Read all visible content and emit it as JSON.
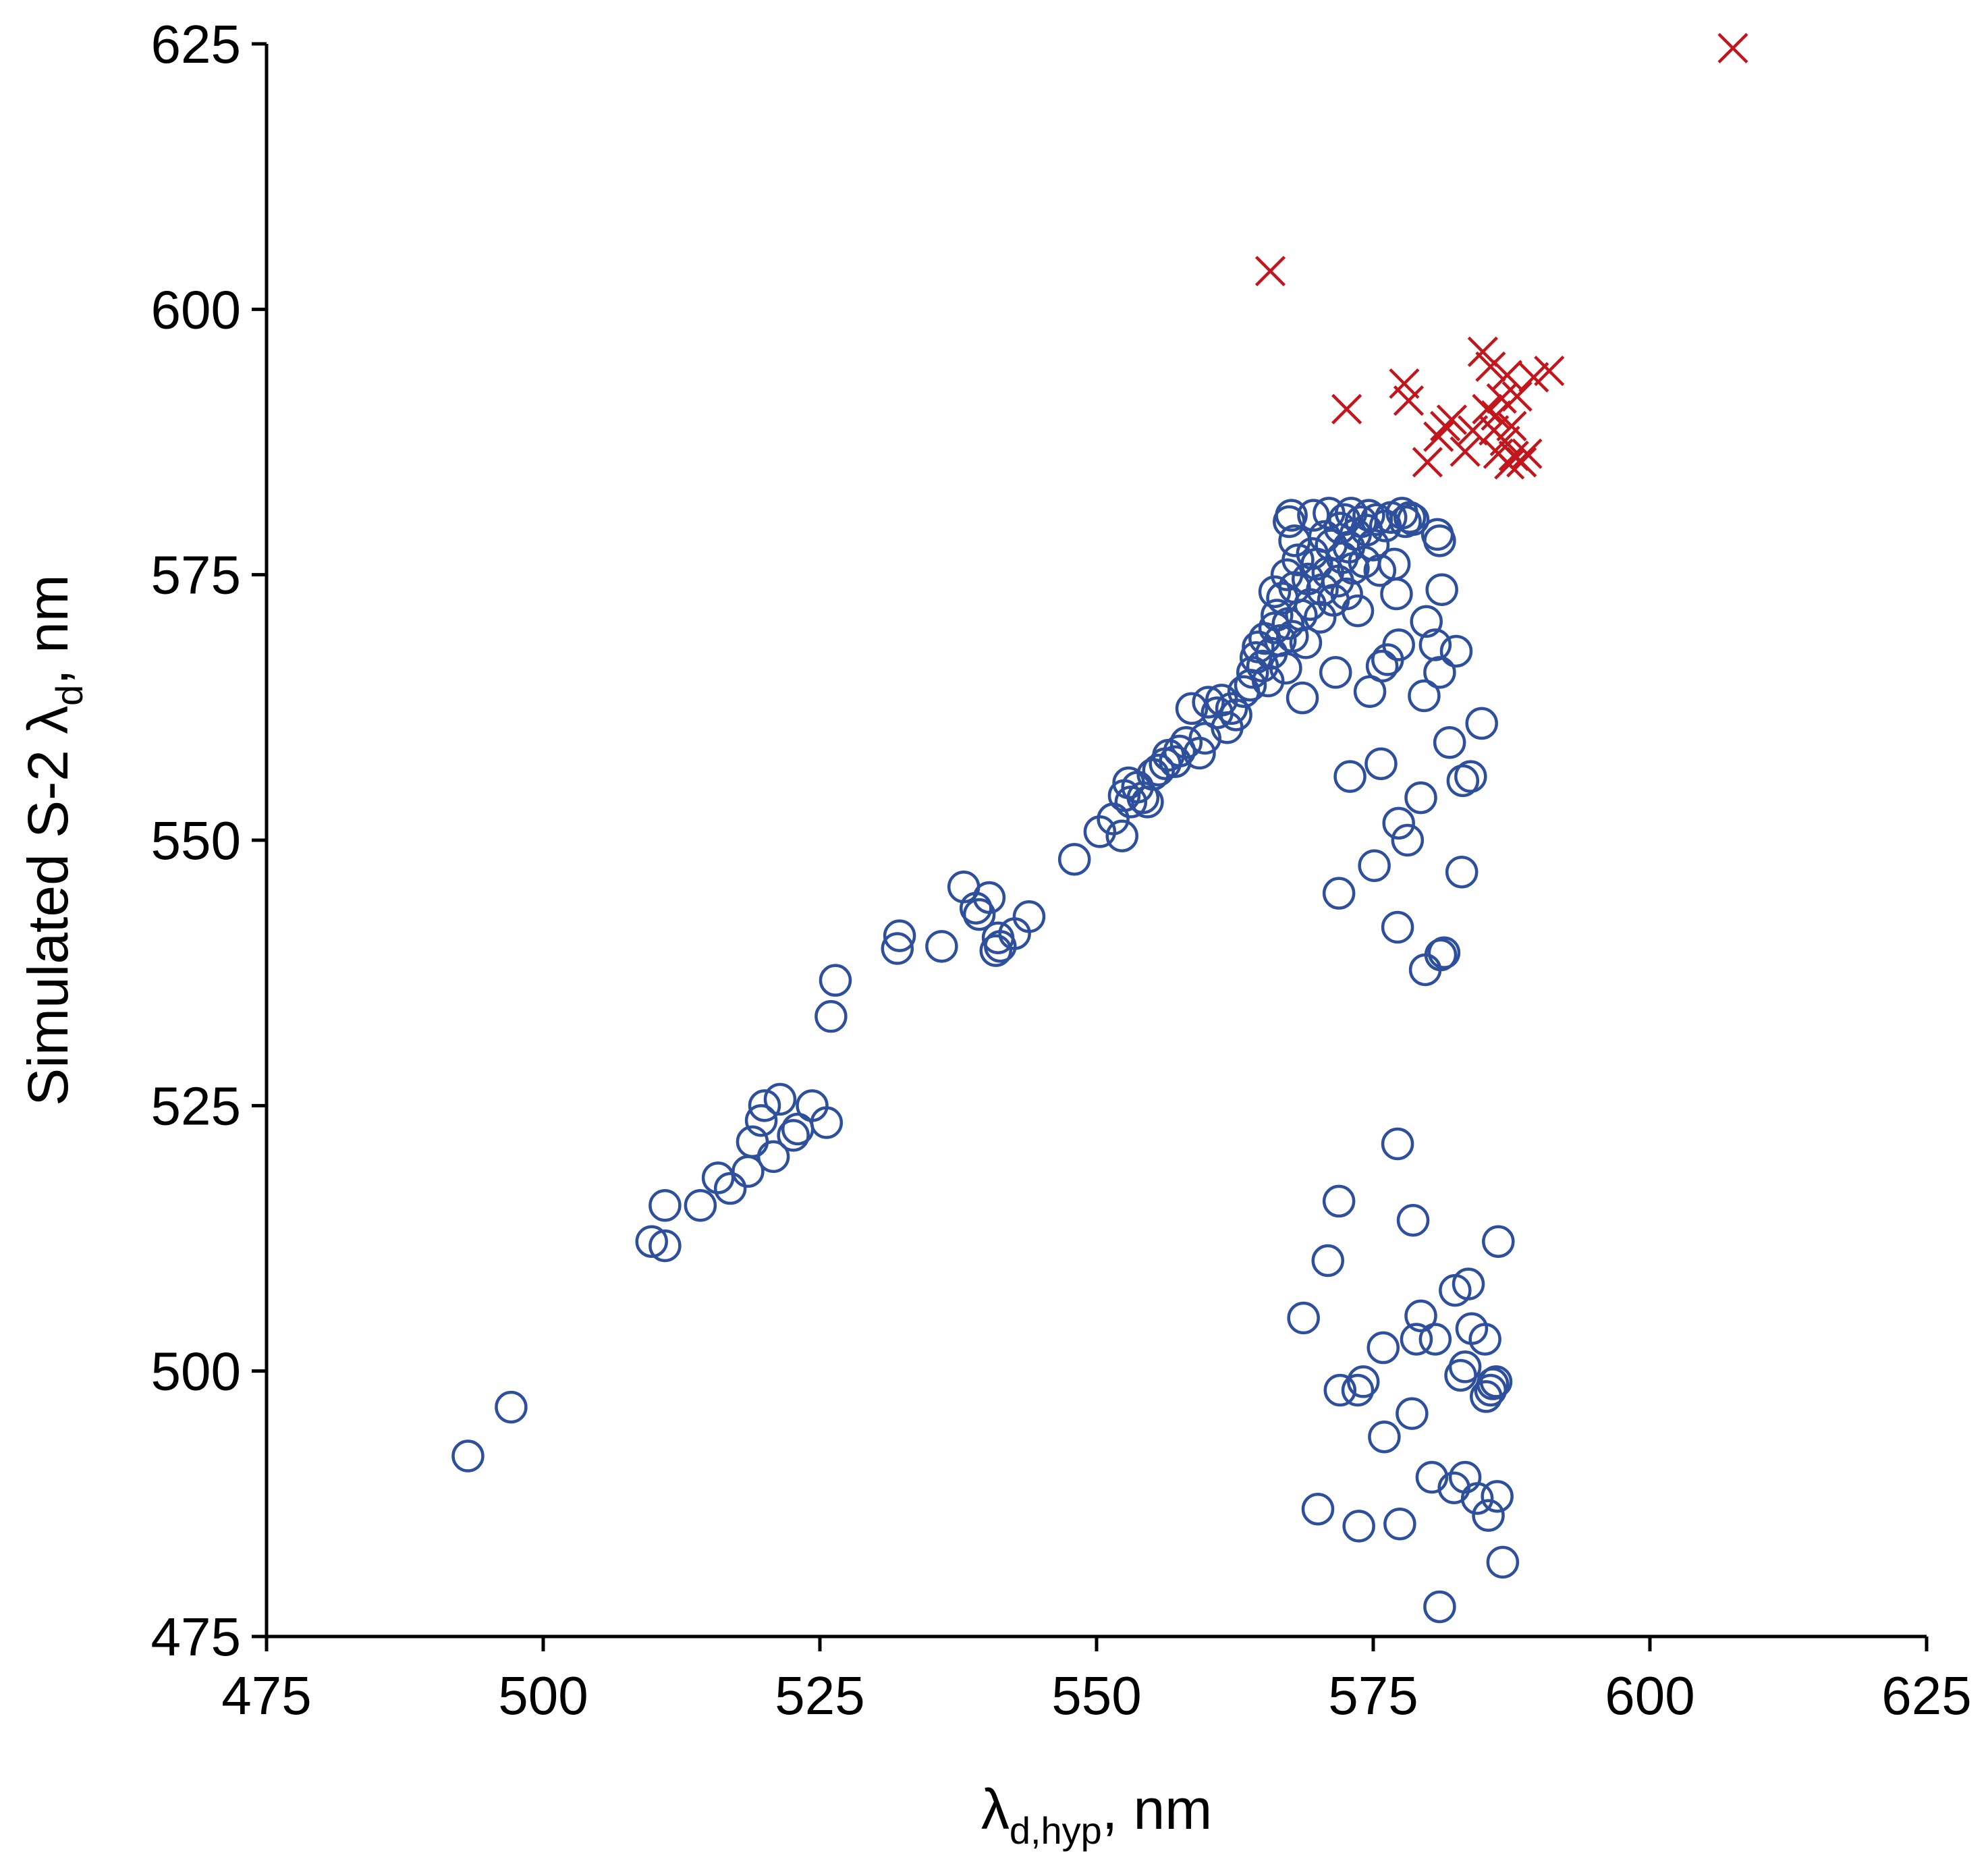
{
  "chart_data": {
    "type": "scatter",
    "title": "",
    "xlabel": {
      "main": "λ",
      "sub": "d,hyp",
      "suffix": ", nm"
    },
    "ylabel": {
      "main": "Simulated S-2 λ",
      "sub": "d",
      "suffix": ", nm"
    },
    "xlim": [
      475,
      625
    ],
    "ylim": [
      475,
      625
    ],
    "xticks": [
      475,
      500,
      525,
      550,
      575,
      600,
      625
    ],
    "yticks": [
      475,
      500,
      525,
      550,
      575,
      600,
      625
    ],
    "grid": false,
    "legend": "none",
    "series": [
      {
        "name": "circles",
        "marker": "circle",
        "color": "#2E4F9C",
        "points": [
          [
            493.2,
            492.0
          ],
          [
            497.1,
            496.6
          ],
          [
            509.8,
            512.2
          ],
          [
            511.0,
            511.8
          ],
          [
            511.0,
            515.6
          ],
          [
            514.2,
            515.6
          ],
          [
            515.8,
            518.2
          ],
          [
            516.9,
            517.2
          ],
          [
            518.5,
            518.8
          ],
          [
            518.9,
            521.6
          ],
          [
            519.7,
            523.6
          ],
          [
            520.0,
            525.0
          ],
          [
            520.8,
            520.2
          ],
          [
            521.4,
            525.6
          ],
          [
            522.6,
            522.2
          ],
          [
            523.0,
            522.8
          ],
          [
            524.3,
            525.0
          ],
          [
            525.6,
            523.4
          ],
          [
            526.0,
            533.4
          ],
          [
            526.4,
            536.8
          ],
          [
            532.0,
            539.8
          ],
          [
            532.2,
            541.0
          ],
          [
            536.0,
            540.0
          ],
          [
            538.0,
            545.6
          ],
          [
            539.1,
            543.6
          ],
          [
            539.4,
            543.0
          ],
          [
            540.3,
            544.6
          ],
          [
            540.9,
            539.6
          ],
          [
            541.3,
            540.0
          ],
          [
            541.1,
            540.8
          ],
          [
            542.6,
            541.2
          ],
          [
            543.9,
            542.8
          ],
          [
            548.0,
            548.2
          ],
          [
            550.3,
            550.8
          ],
          [
            551.5,
            552.0
          ],
          [
            552.3,
            550.4
          ],
          [
            552.5,
            554.2
          ],
          [
            552.9,
            555.4
          ],
          [
            553.1,
            553.6
          ],
          [
            553.7,
            555.0
          ],
          [
            554.2,
            554.0
          ],
          [
            554.6,
            553.6
          ],
          [
            555.1,
            556.2
          ],
          [
            555.6,
            556.6
          ],
          [
            556.2,
            557.2
          ],
          [
            556.5,
            558.0
          ],
          [
            557.1,
            557.4
          ],
          [
            557.5,
            558.4
          ],
          [
            558.1,
            559.2
          ],
          [
            558.6,
            562.4
          ],
          [
            559.3,
            558.2
          ],
          [
            559.8,
            559.6
          ],
          [
            560.1,
            563.0
          ],
          [
            560.9,
            562.0
          ],
          [
            561.3,
            563.2
          ],
          [
            561.8,
            560.6
          ],
          [
            562.2,
            562.4
          ],
          [
            562.6,
            561.8
          ],
          [
            563.3,
            564.0
          ],
          [
            563.9,
            564.6
          ],
          [
            564.1,
            565.8
          ],
          [
            564.4,
            567.2
          ],
          [
            564.6,
            568.2
          ],
          [
            565.0,
            566.4
          ],
          [
            565.2,
            569.0
          ],
          [
            565.5,
            565.0
          ],
          [
            565.8,
            567.6
          ],
          [
            566.1,
            570.0
          ],
          [
            566.3,
            571.2
          ],
          [
            566.1,
            573.4
          ],
          [
            566.6,
            568.8
          ],
          [
            566.8,
            572.8
          ],
          [
            567.1,
            566.2
          ],
          [
            567.3,
            570.4
          ],
          [
            567.2,
            575.0
          ],
          [
            567.7,
            569.2
          ],
          [
            567.9,
            573.8
          ],
          [
            567.4,
            580.0
          ],
          [
            567.6,
            580.6
          ],
          [
            567.9,
            578.2
          ],
          [
            568.2,
            576.4
          ],
          [
            568.5,
            571.2
          ],
          [
            568.6,
            563.4
          ],
          [
            568.9,
            568.6
          ],
          [
            569.1,
            574.6
          ],
          [
            569.3,
            572.2
          ],
          [
            569.5,
            577.0
          ],
          [
            569.6,
            580.6
          ],
          [
            569.9,
            576.0
          ],
          [
            570.2,
            571.0
          ],
          [
            570.4,
            573.6
          ],
          [
            570.6,
            578.6
          ],
          [
            570.9,
            575.2
          ],
          [
            571.0,
            580.8
          ],
          [
            571.2,
            577.8
          ],
          [
            571.4,
            572.6
          ],
          [
            571.6,
            565.8
          ],
          [
            571.8,
            574.4
          ],
          [
            572.0,
            579.4
          ],
          [
            572.2,
            576.6
          ],
          [
            572.4,
            580.2
          ],
          [
            572.6,
            573.2
          ],
          [
            572.8,
            577.6
          ],
          [
            573.0,
            580.8
          ],
          [
            573.2,
            575.6
          ],
          [
            573.4,
            578.8
          ],
          [
            573.6,
            571.6
          ],
          [
            573.9,
            580.0
          ],
          [
            574.2,
            576.2
          ],
          [
            574.4,
            579.2
          ],
          [
            574.6,
            580.6
          ],
          [
            574.7,
            564.0
          ],
          [
            575.0,
            577.8
          ],
          [
            575.3,
            580.2
          ],
          [
            575.6,
            575.4
          ],
          [
            575.8,
            566.4
          ],
          [
            576.1,
            579.6
          ],
          [
            576.3,
            567.0
          ],
          [
            576.6,
            580.4
          ],
          [
            576.9,
            576.0
          ],
          [
            577.1,
            573.2
          ],
          [
            577.3,
            568.4
          ],
          [
            577.6,
            580.8
          ],
          [
            577.9,
            580.0
          ],
          [
            578.3,
            580.4
          ],
          [
            578.6,
            580.2
          ],
          [
            580.8,
            578.8
          ],
          [
            581.0,
            578.2
          ],
          [
            579.8,
            570.6
          ],
          [
            580.6,
            568.4
          ],
          [
            581.0,
            565.8
          ],
          [
            581.2,
            573.6
          ],
          [
            579.6,
            563.6
          ],
          [
            582.5,
            567.8
          ],
          [
            572.9,
            556.0
          ],
          [
            575.7,
            557.2
          ],
          [
            581.9,
            559.2
          ],
          [
            583.1,
            555.6
          ],
          [
            583.8,
            556.0
          ],
          [
            584.8,
            561.0
          ],
          [
            577.3,
            551.6
          ],
          [
            578.1,
            550.0
          ],
          [
            579.3,
            554.0
          ],
          [
            575.1,
            547.6
          ],
          [
            571.9,
            545.0
          ],
          [
            583.0,
            547.0
          ],
          [
            577.2,
            541.8
          ],
          [
            579.7,
            537.8
          ],
          [
            581.1,
            539.2
          ],
          [
            581.4,
            539.4
          ],
          [
            577.2,
            521.4
          ],
          [
            571.9,
            516.0
          ],
          [
            578.6,
            514.2
          ],
          [
            586.3,
            512.2
          ],
          [
            570.9,
            510.4
          ],
          [
            568.7,
            505.0
          ],
          [
            582.4,
            507.6
          ],
          [
            583.6,
            508.2
          ],
          [
            579.3,
            505.2
          ],
          [
            575.9,
            502.2
          ],
          [
            578.9,
            503.0
          ],
          [
            580.6,
            503.0
          ],
          [
            583.9,
            504.0
          ],
          [
            585.1,
            503.0
          ],
          [
            572.0,
            498.2
          ],
          [
            573.6,
            498.2
          ],
          [
            574.1,
            499.0
          ],
          [
            582.9,
            499.6
          ],
          [
            583.3,
            500.4
          ],
          [
            585.8,
            498.8
          ],
          [
            585.2,
            497.6
          ],
          [
            586.1,
            499.0
          ],
          [
            585.6,
            498.2
          ],
          [
            578.5,
            496.0
          ],
          [
            576.0,
            493.8
          ],
          [
            580.3,
            490.0
          ],
          [
            582.3,
            489.0
          ],
          [
            583.3,
            490.0
          ],
          [
            584.4,
            488.0
          ],
          [
            585.4,
            486.4
          ],
          [
            586.2,
            488.2
          ],
          [
            570.0,
            487.0
          ],
          [
            573.7,
            485.4
          ],
          [
            577.4,
            485.6
          ],
          [
            586.7,
            482.0
          ],
          [
            581.0,
            477.8
          ]
        ]
      },
      {
        "name": "crosses",
        "marker": "x",
        "color": "#C3161C",
        "points": [
          [
            607.5,
            624.6
          ],
          [
            565.7,
            603.6
          ],
          [
            572.6,
            590.6
          ],
          [
            577.8,
            593.0
          ],
          [
            578.2,
            591.4
          ],
          [
            579.9,
            585.6
          ],
          [
            580.9,
            588.0
          ],
          [
            581.5,
            589.0
          ],
          [
            582.1,
            589.6
          ],
          [
            583.3,
            586.6
          ],
          [
            584.0,
            588.6
          ],
          [
            584.9,
            596.0
          ],
          [
            585.3,
            590.6
          ],
          [
            585.6,
            594.6
          ],
          [
            585.9,
            588.6
          ],
          [
            586.1,
            590.0
          ],
          [
            586.3,
            586.4
          ],
          [
            586.6,
            591.6
          ],
          [
            586.9,
            587.6
          ],
          [
            587.1,
            593.8
          ],
          [
            587.3,
            585.4
          ],
          [
            587.5,
            589.0
          ],
          [
            587.7,
            586.2
          ],
          [
            588.0,
            591.8
          ],
          [
            588.4,
            585.6
          ],
          [
            588.9,
            586.4
          ],
          [
            589.5,
            593.6
          ],
          [
            590.9,
            594.2
          ]
        ]
      }
    ]
  }
}
